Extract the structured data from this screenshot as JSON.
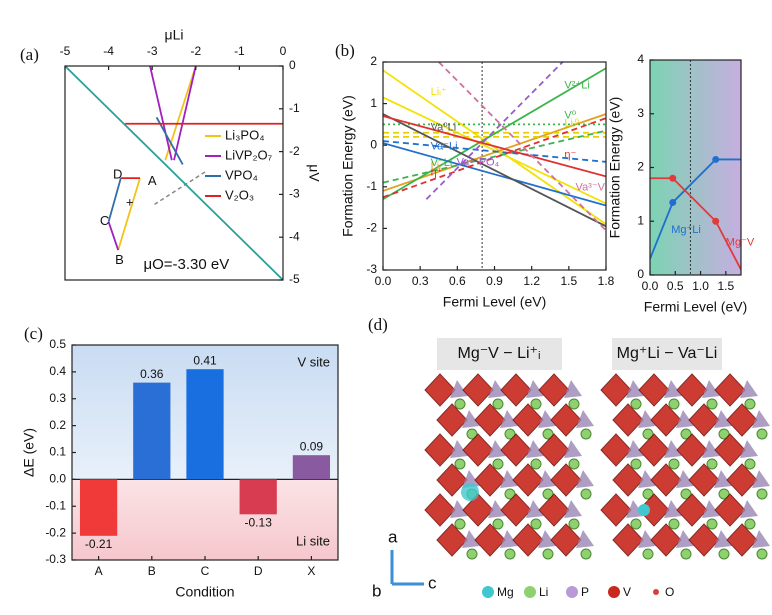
{
  "chart_data": [
    {
      "type": "line",
      "panel_label": "(a)",
      "x_label": "μLi",
      "y_label": "μV",
      "x_axis_position": "top",
      "y_axis_position": "right",
      "legend": "right",
      "xlim": [
        -5,
        0
      ],
      "xticks": [
        -5,
        -4,
        -3,
        -2,
        -1,
        0
      ],
      "ylim": [
        -5,
        0
      ],
      "yticks": [
        0,
        -1,
        -2,
        -3,
        -4,
        -5
      ],
      "series": [
        {
          "name": "Li₃PO₄",
          "color": "#f0c419",
          "x": [
            -2.0,
            -2.7,
            null,
            -3.28,
            -3.78
          ],
          "values": [
            0,
            -2.2,
            null,
            -2.62,
            -4.3
          ]
        },
        {
          "name": "LiVP₂O₇",
          "color": "#a020c0",
          "x": [
            -3.05,
            -2.55,
            null,
            -2.0,
            -2.5,
            null,
            -3.78,
            -4.0
          ],
          "values": [
            0,
            -2.2,
            null,
            0,
            -2.2,
            null,
            -4.3,
            -3.64
          ]
        },
        {
          "name": "VPO₄",
          "color": "#2f6fa8",
          "x": [
            -2.9,
            -2.3,
            null,
            -4.0,
            -3.72
          ],
          "values": [
            -1.2,
            -2.3,
            null,
            -3.64,
            -2.62
          ]
        },
        {
          "name": "V₂O₃",
          "color": "#e02020",
          "x": [
            -3.62,
            0,
            null,
            -3.72,
            -3.28
          ],
          "values": [
            -1.35,
            -1.35,
            null,
            -2.62,
            -2.62
          ]
        },
        {
          "color": "#2aa198",
          "x": [
            -5,
            0
          ],
          "values": [
            0,
            -5
          ]
        }
      ],
      "annotations": [
        {
          "text": "D",
          "x": -3.9,
          "y": -2.55
        },
        {
          "text": "A",
          "x": -3.1,
          "y": -2.7
        },
        {
          "text": "C",
          "x": -4.2,
          "y": -3.64
        },
        {
          "text": "B",
          "x": -3.85,
          "y": -4.55
        },
        {
          "text": "+",
          "x": -3.6,
          "y": -3.2
        },
        {
          "text": "μO=-3.30 eV",
          "x": -3.2,
          "y": -4.65
        }
      ]
    },
    {
      "type": "line",
      "panel_label": "(b)",
      "x_label": "Fermi Level (eV)",
      "y_label": "Formation Energy (eV)",
      "xlim": [
        0,
        1.8
      ],
      "xticks": [
        {
          "value": 0,
          "label": "0.0"
        },
        0.3,
        0.6,
        0.9,
        1.2,
        1.5,
        1.8
      ],
      "ylim": [
        -3,
        2
      ],
      "yticks": [
        -3,
        -2,
        -1,
        0,
        1,
        2
      ],
      "vline": 0.8,
      "series": [
        {
          "name": "Liᵢ⁺",
          "color": "#f2e205",
          "x": [
            0,
            1.8
          ],
          "values": [
            1.8,
            -1.9
          ]
        },
        {
          "color": "#f2e205",
          "x": [
            0,
            1.8
          ],
          "values": [
            1.15,
            -1.4
          ]
        },
        {
          "name": "Liᵢ⁻",
          "color": "#e0a020",
          "x": [
            0,
            1.8
          ],
          "values": [
            -1.1,
            0.75
          ]
        },
        {
          "name": "Liᵢ⁰",
          "color": "#e8d000",
          "dash": "dash",
          "x": [
            0,
            1.8
          ],
          "values": [
            0.3,
            0.3
          ]
        },
        {
          "color": "#e8d000",
          "dash": "dash",
          "x": [
            0,
            1.8
          ],
          "values": [
            0.2,
            0.2
          ]
        },
        {
          "name": "V²⁺Li",
          "color": "#3cb44b",
          "x": [
            0,
            1.8
          ],
          "values": [
            -1.3,
            1.85
          ]
        },
        {
          "name": "V⁻Li",
          "color": "#3cb44b",
          "dash": "dash",
          "x": [
            0,
            1.8
          ],
          "values": [
            -0.9,
            0.35
          ]
        },
        {
          "name": "V⁰",
          "color": "#3cb44b",
          "dash": "dot",
          "x": [
            0,
            1.8
          ],
          "values": [
            0.5,
            0.5
          ]
        },
        {
          "name": "Va⁻Li",
          "color": "#1f6fd0",
          "x": [
            0,
            1.8
          ],
          "values": [
            0.05,
            -1.45
          ]
        },
        {
          "color": "#1f6fd0",
          "dash": "dash",
          "x": [
            0,
            1.8
          ],
          "values": [
            0.1,
            -0.4
          ]
        },
        {
          "name": "Va⁰Li",
          "color": "#555555",
          "x": [
            0,
            1.8
          ],
          "values": [
            0.75,
            -1.95
          ]
        },
        {
          "name": "η⁻",
          "color": "#e03030",
          "x": [
            0,
            1.8
          ],
          "values": [
            0.7,
            -0.75
          ]
        },
        {
          "name": "η⁺",
          "color": "#e03030",
          "dash": "dash",
          "x": [
            0,
            1.8
          ],
          "values": [
            -1.25,
            0.65
          ]
        },
        {
          "name": "Va³⁻V",
          "color": "#d070a0",
          "dash": "dash",
          "x": [
            0.45,
            1.8
          ],
          "values": [
            2.0,
            -2.05
          ]
        },
        {
          "name": "Va³⁻PO₄",
          "color": "#9b59d0",
          "dash": "dash",
          "x": [
            0.35,
            1.45
          ],
          "values": [
            -1.3,
            2.0
          ]
        }
      ]
    },
    {
      "type": "line",
      "x_label": "Fermi Level (eV)",
      "y_label": "Formation Energy (eV)",
      "markers": true,
      "background": [
        "#5cc8a0",
        "#b89ad8"
      ],
      "xlim": [
        0,
        1.8
      ],
      "xticks": [
        {
          "value": 0,
          "label": "0.0"
        },
        0.5,
        {
          "value": 1,
          "label": "1.0"
        },
        1.5
      ],
      "ylim": [
        0,
        4
      ],
      "yticks": [
        0,
        1,
        2,
        3,
        4
      ],
      "vline": 0.8,
      "series": [
        {
          "name": "Mg⁺Li",
          "color": "#1f6fd0",
          "x": [
            0,
            0.45,
            1.3,
            1.8
          ],
          "values": [
            0.3,
            1.35,
            2.15,
            2.15
          ]
        },
        {
          "name": "Mg⁻V",
          "color": "#e03a3a",
          "x": [
            0,
            0.45,
            1.3,
            1.8
          ],
          "values": [
            1.8,
            1.8,
            1.0,
            0.1
          ]
        }
      ]
    },
    {
      "type": "bar",
      "panel_label": "(c)",
      "x_label": "Condition",
      "y_label": "ΔE (eV)",
      "categories": [
        "A",
        "B",
        "C",
        "D",
        "X"
      ],
      "values": [
        -0.21,
        0.36,
        0.41,
        -0.13,
        0.09
      ],
      "colors": [
        "#f03a3a",
        "#2a6fd6",
        "#1a6fe0",
        "#d83c50",
        "#8a5aa0"
      ],
      "ylim": [
        -0.3,
        0.5
      ],
      "yticks": [
        -0.3,
        -0.2,
        -0.1,
        {
          "value": 0,
          "label": "0.0"
        },
        0.1,
        0.2,
        0.3,
        0.4,
        0.5
      ],
      "region_labels": {
        "top": "V site",
        "bottom": "Li site"
      }
    }
  ],
  "figure_d": {
    "panel_label": "(d)",
    "left_title": "Mg⁻V − Li⁺ᵢ",
    "right_title": "Mg⁺Li − Va⁻Li",
    "axes": [
      "a",
      "b",
      "c"
    ],
    "legend": [
      "Mg",
      "Li",
      "P",
      "V",
      "O"
    ]
  }
}
